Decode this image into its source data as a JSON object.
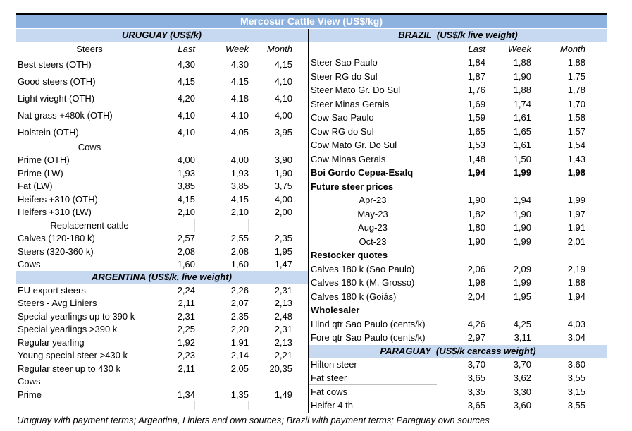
{
  "title": "Mercosur Cattle View (US$/kg)",
  "footnote": "Uruguay with payment terms; Argentina, Liniers and own sources; Brazil with payment terms; Paraguay own sources",
  "colors": {
    "title_bg": "#8EB2E0",
    "title_text": "#FFFFFF",
    "section_bg": "#C6D9F1",
    "text": "#000000",
    "divider": "#000000",
    "grid_tick": "#D9D9D9",
    "underline": "#BFBFBF"
  },
  "columns": [
    "Last",
    "Week",
    "Month"
  ],
  "panels": {
    "left": {
      "header": "URUGUAY (US$/k)",
      "rows": [
        {
          "l": "Steers",
          "v": [
            "Last",
            "Week",
            "Month"
          ],
          "s": "cols"
        },
        {
          "l": "Best steers (OTH)",
          "v": [
            "4,30",
            "4,30",
            "4,15"
          ],
          "s": "tall"
        },
        {
          "l": "Good steers (OTH)",
          "v": [
            "4,15",
            "4,15",
            "4,10"
          ],
          "s": "tall"
        },
        {
          "l": "Light wieght (OTH)",
          "v": [
            "4,20",
            "4,18",
            "4,10"
          ],
          "s": "tall"
        },
        {
          "l": "Nat grass +480k (OTH)",
          "v": [
            "4,10",
            "4,10",
            "4,00"
          ],
          "s": "tall"
        },
        {
          "l": "Holstein (OTH)",
          "v": [
            "4,10",
            "4,05",
            "3,95"
          ],
          "s": "tall"
        },
        {
          "l": "Cows",
          "s": "center"
        },
        {
          "l": "Prime (OTH)",
          "v": [
            "4,00",
            "4,00",
            "3,90"
          ]
        },
        {
          "l": "Prime (LW)",
          "v": [
            "1,93",
            "1,93",
            "1,90"
          ]
        },
        {
          "l": "Fat (LW)",
          "v": [
            "3,85",
            "3,85",
            "3,75"
          ]
        },
        {
          "l": "Heifers +310 (OTH)",
          "v": [
            "4,15",
            "4,15",
            "4,00"
          ]
        },
        {
          "l": "Heifers +310 (LW)",
          "v": [
            "2,10",
            "2,10",
            "2,00"
          ]
        },
        {
          "l": "Replacement cattle",
          "s": "center ticks"
        },
        {
          "l": "Calves (120-180 k)",
          "v": [
            "2,57",
            "2,55",
            "2,35"
          ]
        },
        {
          "l": "Steers (320-360 k)",
          "v": [
            "2,08",
            "2,08",
            "1,95"
          ]
        },
        {
          "l": "Cows",
          "v": [
            "1,60",
            "1,60",
            "1,47"
          ]
        },
        {
          "l": "ARGENTINA (US$/k, live weight)",
          "s": "section"
        },
        {
          "l": "EU export steers",
          "v": [
            "2,24",
            "2,26",
            "2,31"
          ]
        },
        {
          "l": "Steers - Avg Liniers",
          "v": [
            "2,11",
            "2,07",
            "2,13"
          ]
        },
        {
          "l": "Special yearlings up to 390 k",
          "v": [
            "2,31",
            "2,35",
            "2,48"
          ]
        },
        {
          "l": "Special yearlings >390 k",
          "v": [
            "2,25",
            "2,20",
            "2,31"
          ]
        },
        {
          "l": "Regular yearling",
          "v": [
            "1,92",
            "1,91",
            "2,13"
          ]
        },
        {
          "l": "Young special steer >430 k",
          "v": [
            "2,23",
            "2,14",
            "2,21"
          ]
        },
        {
          "l": "Regular steer up to 430 k",
          "v": [
            "2,11",
            "2,05",
            "20,35"
          ]
        },
        {
          "l": "Cows"
        },
        {
          "l": "Prime",
          "v": [
            "1,34",
            "1,35",
            "1,49"
          ]
        },
        {
          "s": "empty"
        }
      ]
    },
    "right": {
      "header": "BRAZIL  (US$/k live weight)",
      "rows": [
        {
          "l": "",
          "v": [
            "Last",
            "Week",
            "Month"
          ],
          "s": "cols"
        },
        {
          "l": "Steer Sao Paulo",
          "v": [
            "1,84",
            "1,88",
            "1,88"
          ]
        },
        {
          "l": "Steer RG do Sul",
          "v": [
            "1,87",
            "1,90",
            "1,75"
          ]
        },
        {
          "l": "Steer Mato Gr. Do Sul",
          "v": [
            "1,76",
            "1,88",
            "1,78"
          ]
        },
        {
          "l": "Steer Minas Gerais",
          "v": [
            "1,69",
            "1,74",
            "1,70"
          ]
        },
        {
          "l": "Cow Sao Paulo",
          "v": [
            "1,59",
            "1,61",
            "1,58"
          ]
        },
        {
          "l": "Cow RG do Sul",
          "v": [
            "1,65",
            "1,65",
            "1,57"
          ]
        },
        {
          "l": "Cow Mato Gr. Do Sul",
          "v": [
            "1,53",
            "1,61",
            "1,54"
          ]
        },
        {
          "l": "Cow Minas Gerais",
          "v": [
            "1,48",
            "1,50",
            "1,43"
          ]
        },
        {
          "l": "Boi Gordo Cepea-Esalq",
          "v": [
            "1,94",
            "1,99",
            "1,98"
          ],
          "s": "bold"
        },
        {
          "l": "Future steer prices",
          "s": "bold"
        },
        {
          "l": "Apr-23",
          "v": [
            "1,90",
            "1,94",
            "1,99"
          ],
          "s": "center"
        },
        {
          "l": "May-23",
          "v": [
            "1,82",
            "1,90",
            "1,97"
          ],
          "s": "center"
        },
        {
          "l": "Aug-23",
          "v": [
            "1,80",
            "1,90",
            "1,91"
          ],
          "s": "center"
        },
        {
          "l": "Oct-23",
          "v": [
            "1,90",
            "1,99",
            "2,01"
          ],
          "s": "center"
        },
        {
          "l": "Restocker quotes",
          "s": "bold"
        },
        {
          "l": "Calves 180 k (Sao Paulo)",
          "v": [
            "2,06",
            "2,09",
            "2,19"
          ]
        },
        {
          "l": "Calves 180 k (M. Grosso)",
          "v": [
            "1,98",
            "1,99",
            "1,88"
          ]
        },
        {
          "l": "Calves 180 k (Goiás)",
          "v": [
            "2,04",
            "1,95",
            "1,94"
          ]
        },
        {
          "l": "Wholesaler",
          "s": "bold"
        },
        {
          "l": "Hind qtr Sao Paulo (cents/k)",
          "v": [
            "4,26",
            "4,25",
            "4,03"
          ]
        },
        {
          "l": "Fore qtr Sao Paulo (cents/k)",
          "v": [
            "2,97",
            "3,11",
            "3,04"
          ]
        },
        {
          "l": "PARAGUAY  (US$/k carcass weight)",
          "s": "section"
        },
        {
          "l": "Hilton steer",
          "v": [
            "3,70",
            "3,70",
            "3,60"
          ]
        },
        {
          "l": "Fat steer",
          "v": [
            "3,65",
            "3,62",
            "3,55"
          ],
          "s": "underline"
        },
        {
          "l": "Fat cows",
          "v": [
            "3,35",
            "3,30",
            "3,15"
          ]
        },
        {
          "l": "Heifer 4 th",
          "v": [
            "3,65",
            "3,60",
            "3,55"
          ]
        }
      ]
    }
  }
}
